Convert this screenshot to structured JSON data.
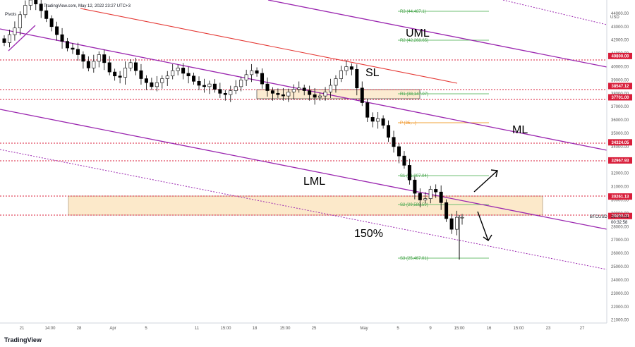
{
  "header": {
    "source_line": "TradingView.com, May 12, 2022 23:27 UTC+3",
    "indicator": "Pivots"
  },
  "footer": {
    "logo_text": "TradingView"
  },
  "chart_data": {
    "type": "candlestick",
    "symbol": "BTCUSD",
    "yaxis_unit": "USD",
    "ylim": [
      20400,
      45000
    ],
    "y_ticks": [
      21000,
      22000,
      23000,
      24000,
      25000,
      26000,
      27000,
      28000,
      29000,
      30000,
      31000,
      32000,
      33000,
      34000,
      35000,
      36000,
      37000,
      38000,
      39000,
      40000,
      41000,
      42000,
      43000,
      44000
    ],
    "x_ticks": [
      {
        "label": "21",
        "x": 31
      },
      {
        "label": "14:00",
        "x": 71
      },
      {
        "label": "28",
        "x": 112
      },
      {
        "label": "Apr",
        "x": 160
      },
      {
        "label": "5",
        "x": 207
      },
      {
        "label": "11",
        "x": 279
      },
      {
        "label": "15:00",
        "x": 320
      },
      {
        "label": "18",
        "x": 361
      },
      {
        "label": "15:00",
        "x": 404
      },
      {
        "label": "25",
        "x": 445
      },
      {
        "label": "May",
        "x": 516
      },
      {
        "label": "5",
        "x": 564
      },
      {
        "label": "9",
        "x": 610
      },
      {
        "label": "15:00",
        "x": 651
      },
      {
        "label": "16",
        "x": 693
      },
      {
        "label": "15:00",
        "x": 735
      },
      {
        "label": "23",
        "x": 777
      },
      {
        "label": "27",
        "x": 825
      }
    ],
    "price_labels": [
      {
        "value": 40800.0,
        "text": "40800.00"
      },
      {
        "value": 38547.12,
        "text": "38547.12"
      },
      {
        "value": 37701.0,
        "text": "37701.00"
      },
      {
        "value": 34324.05,
        "text": "34324.05"
      },
      {
        "value": 32967.93,
        "text": "32967.93"
      },
      {
        "value": 30261.13,
        "text": "30261.13"
      },
      {
        "value": 28800.0,
        "text": "28800.00"
      }
    ],
    "current_price": {
      "symbol": "BTCUSD",
      "price": "28746.01",
      "countdown": "00:32:58"
    },
    "pivot_levels": [
      {
        "name": "R3",
        "value": 44487.1,
        "label": "R3 (44,487.1)"
      },
      {
        "name": "R2",
        "value": 42268.65,
        "label": "R2 (42,268.65)"
      },
      {
        "name": "R1",
        "value": 38147.07,
        "label": "R1 (38,147.07)"
      },
      {
        "name": "P",
        "value": 35900,
        "label": "P (35,...)"
      },
      {
        "name": "S1",
        "value": 31807.04,
        "label": "S1 (31,807.04)"
      },
      {
        "name": "S2",
        "value": 29588.59,
        "label": "S2 (29,588.59)"
      },
      {
        "name": "S3",
        "value": 25467.01,
        "label": "S3 (25,467.01)"
      }
    ],
    "annotations": [
      "UML",
      "SL",
      "ML",
      "LML",
      "150%"
    ],
    "series_close": [
      41800,
      42400,
      42900,
      43900,
      44600,
      45000,
      44700,
      44200,
      43600,
      43000,
      42400,
      41900,
      41400,
      41300,
      40900,
      40400,
      39900,
      40400,
      40900,
      40300,
      39600,
      39300,
      39200,
      39900,
      40300,
      39700,
      39100,
      38800,
      38500,
      38800,
      39100,
      39300,
      39700,
      39900,
      39500,
      39300,
      38900,
      38600,
      38500,
      38700,
      38300,
      38000,
      37900,
      38200,
      38500,
      39000,
      39400,
      39700,
      39500,
      38700,
      38200,
      38000,
      37900,
      37800,
      38100,
      38300,
      38400,
      38200,
      37900,
      37700,
      37800,
      38100,
      38600,
      39100,
      39700,
      40000,
      39800,
      38400,
      37300,
      36200,
      35900,
      36100,
      35600,
      34700,
      34000,
      33300,
      32600,
      31500,
      30500,
      30000,
      30100,
      30800,
      30600,
      29800,
      28600,
      27800,
      28700,
      28700
    ]
  }
}
